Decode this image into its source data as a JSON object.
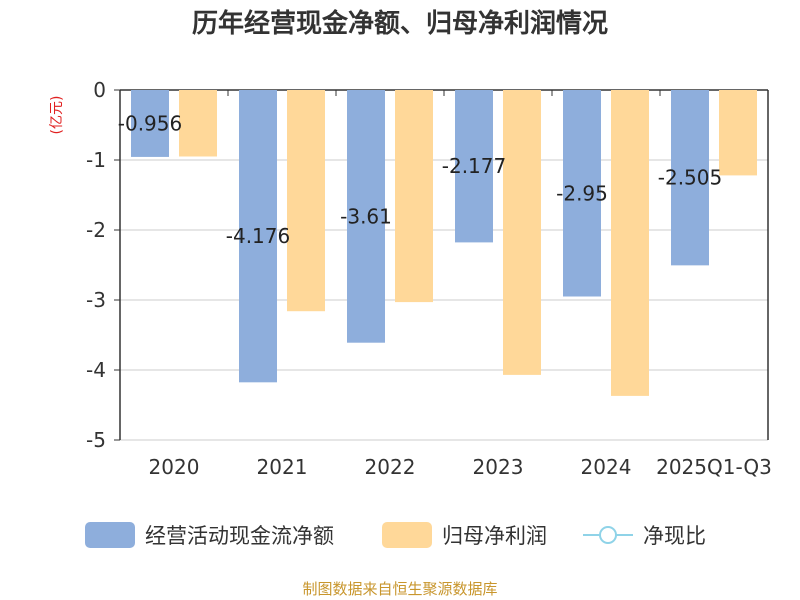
{
  "chart_data": {
    "type": "bar",
    "title": "历年经营现金净额、归母净利润情况",
    "unit_label": "(亿元)",
    "categories": [
      "2020",
      "2021",
      "2022",
      "2023",
      "2024",
      "2025Q1-Q3"
    ],
    "series": [
      {
        "name": "经营活动现金流净额",
        "color": "#8eaedc",
        "values": [
          -0.956,
          -4.176,
          -3.61,
          -2.177,
          -2.95,
          -2.505
        ],
        "labels": [
          "-0.956",
          "-4.176",
          "-3.61",
          "-2.177",
          "-2.95",
          "-2.505"
        ]
      },
      {
        "name": "归母净利润",
        "color": "#ffd899",
        "values": [
          -0.95,
          -3.16,
          -3.03,
          -4.07,
          -4.37,
          -1.22
        ]
      }
    ],
    "legend_extra": {
      "name": "净现比",
      "color": "#8fd3e8"
    },
    "y_ticks": [
      "0",
      "-1",
      "-2",
      "-3",
      "-4",
      "-5"
    ],
    "ylim": [
      -5,
      0
    ],
    "grid": true,
    "legend_position": "bottom",
    "unit_color": "#e02020"
  },
  "footer": {
    "source": "制图数据来自恒生聚源数据库"
  }
}
